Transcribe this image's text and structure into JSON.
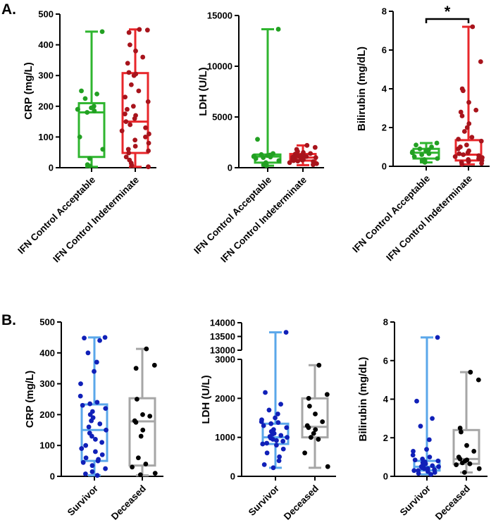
{
  "panel_labels": [
    "A.",
    "B."
  ],
  "chart_data": [
    {
      "id": "a1",
      "type": "box",
      "title": "",
      "ylabel": "CRP (mg/L)",
      "xlabel": "",
      "ylim": [
        0,
        500
      ],
      "yticks": [
        0,
        100,
        200,
        300,
        400,
        500
      ],
      "categories": [
        "IFN Control Acceptable",
        "IFN Control Indeterminate"
      ],
      "series": [
        {
          "name": "IFN Control Acceptable",
          "color": "#2fb52f",
          "dot_color": "#22a022",
          "min": 3,
          "q1": 35,
          "median": 180,
          "q3": 210,
          "max": 443,
          "points": [
            443,
            250,
            240,
            225,
            200,
            195,
            190,
            190,
            185,
            180,
            100,
            60,
            30,
            10,
            5
          ]
        },
        {
          "name": "IFN Control Indeterminate",
          "color": "#e8262a",
          "dot_color": "#a8141c",
          "min": 3,
          "q1": 48,
          "median": 150,
          "q3": 308,
          "max": 450,
          "points": [
            450,
            448,
            440,
            400,
            380,
            360,
            340,
            310,
            305,
            300,
            270,
            250,
            230,
            215,
            200,
            190,
            175,
            170,
            160,
            150,
            140,
            130,
            120,
            110,
            100,
            90,
            80,
            70,
            60,
            55,
            48,
            35,
            25,
            15,
            8,
            3
          ]
        }
      ]
    },
    {
      "id": "a2",
      "type": "box",
      "title": "",
      "ylabel": "LDH (U/L)",
      "xlabel": "",
      "ylim": [
        0,
        15000
      ],
      "yticks": [
        0,
        5000,
        10000,
        15000
      ],
      "categories": [
        "IFN Control Acceptable",
        "IFN Control Indeterminate"
      ],
      "series": [
        {
          "name": "IFN Control Acceptable",
          "color": "#2fb52f",
          "dot_color": "#22a022",
          "min": 200,
          "q1": 500,
          "median": 1100,
          "q3": 1300,
          "max": 13650,
          "points": [
            13650,
            2800,
            1400,
            1300,
            1250,
            1200,
            1150,
            1100,
            1050,
            1000,
            900,
            700,
            500,
            300,
            200
          ]
        },
        {
          "name": "IFN Control Indeterminate",
          "color": "#e8262a",
          "dot_color": "#a8141c",
          "min": 250,
          "q1": 700,
          "median": 1000,
          "q3": 1350,
          "max": 2200,
          "points": [
            2200,
            2000,
            1800,
            1600,
            1500,
            1400,
            1350,
            1300,
            1250,
            1200,
            1150,
            1100,
            1050,
            1000,
            950,
            900,
            850,
            800,
            750,
            700,
            650,
            600,
            500,
            400,
            300
          ]
        }
      ]
    },
    {
      "id": "a3",
      "type": "box",
      "title": "",
      "ylabel": "Bilirubin (mg/dL)",
      "xlabel": "",
      "ylim": [
        0,
        8
      ],
      "yticks": [
        0,
        2,
        4,
        6,
        8
      ],
      "categories": [
        "IFN Control Acceptable",
        "IFN Control Indeterminate"
      ],
      "annotation": {
        "text": "*",
        "between": [
          0,
          1
        ],
        "y": 7.6
      },
      "series": [
        {
          "name": "IFN Control Acceptable",
          "color": "#2fb52f",
          "dot_color": "#22a022",
          "min": 0.2,
          "q1": 0.4,
          "median": 0.7,
          "q3": 0.9,
          "max": 1.2,
          "points": [
            1.2,
            1.1,
            1.0,
            0.9,
            0.85,
            0.8,
            0.75,
            0.7,
            0.65,
            0.6,
            0.5,
            0.4,
            0.35,
            0.3,
            0.2
          ]
        },
        {
          "name": "IFN Control Indeterminate",
          "color": "#e8262a",
          "dot_color": "#a8141c",
          "min": 0.1,
          "q1": 0.3,
          "median": 0.6,
          "q3": 1.35,
          "max": 7.2,
          "points": [
            7.2,
            5.4,
            4.0,
            3.9,
            3.3,
            2.9,
            2.8,
            2.6,
            2.2,
            2.0,
            1.8,
            1.5,
            1.4,
            1.3,
            1.1,
            1.0,
            0.9,
            0.8,
            0.7,
            0.65,
            0.6,
            0.55,
            0.5,
            0.45,
            0.4,
            0.35,
            0.3,
            0.25,
            0.2,
            0.15,
            0.1
          ]
        }
      ]
    },
    {
      "id": "b1",
      "type": "box",
      "title": "",
      "ylabel": "CRP (mg/L)",
      "xlabel": "",
      "ylim": [
        0,
        500
      ],
      "yticks": [
        0,
        100,
        200,
        300,
        400,
        500
      ],
      "categories": [
        "Survivor",
        "Deceased"
      ],
      "series": [
        {
          "name": "Survivor",
          "color": "#5aa7ea",
          "dot_color": "#1020b8",
          "min": 3,
          "q1": 50,
          "median": 150,
          "q3": 233,
          "max": 450,
          "points": [
            450,
            448,
            440,
            400,
            370,
            340,
            300,
            260,
            240,
            235,
            230,
            220,
            210,
            200,
            190,
            180,
            170,
            160,
            150,
            140,
            130,
            120,
            110,
            100,
            90,
            80,
            70,
            60,
            55,
            50,
            45,
            35,
            25,
            15,
            8,
            3
          ]
        },
        {
          "name": "Deceased",
          "color": "#a6a6a6",
          "dot_color": "#000000",
          "min": 3,
          "q1": 35,
          "median": 178,
          "q3": 253,
          "max": 413,
          "points": [
            413,
            360,
            350,
            250,
            200,
            195,
            180,
            175,
            150,
            130,
            60,
            40,
            30,
            10,
            5
          ]
        }
      ]
    },
    {
      "id": "b2",
      "type": "box",
      "broken_axis": true,
      "title": "",
      "ylabel": "LDH (U/L)",
      "xlabel": "",
      "ylim": [
        0,
        3000
      ],
      "ylim_upper": [
        13000,
        14000
      ],
      "yticks": [
        0,
        1000,
        2000,
        3000
      ],
      "yticks_upper": [
        13000,
        13500,
        14000
      ],
      "categories": [
        "Survivor",
        "Deceased"
      ],
      "series": [
        {
          "name": "Survivor",
          "color": "#5aa7ea",
          "dot_color": "#1020b8",
          "min": 220,
          "q1": 830,
          "median": 1000,
          "q3": 1350,
          "max": 13650,
          "points": [
            13650,
            2150,
            1850,
            1700,
            1600,
            1500,
            1450,
            1400,
            1380,
            1350,
            1300,
            1250,
            1200,
            1150,
            1100,
            1080,
            1050,
            1020,
            1000,
            980,
            950,
            920,
            900,
            850,
            830,
            800,
            700,
            600,
            500,
            400,
            300,
            220
          ]
        },
        {
          "name": "Deceased",
          "color": "#a6a6a6",
          "dot_color": "#000000",
          "min": 220,
          "q1": 1000,
          "median": 1270,
          "q3": 2000,
          "max": 2850,
          "points": [
            2850,
            2100,
            2000,
            1800,
            1600,
            1400,
            1300,
            1250,
            1200,
            1100,
            1000,
            950,
            600,
            250
          ]
        }
      ]
    },
    {
      "id": "b3",
      "type": "box",
      "title": "",
      "ylabel": "Bilirubin (mg/dL)",
      "xlabel": "",
      "ylim": [
        0,
        8
      ],
      "yticks": [
        0,
        2,
        4,
        6,
        8
      ],
      "categories": [
        "Survivor",
        "Deceased"
      ],
      "series": [
        {
          "name": "Survivor",
          "color": "#5aa7ea",
          "dot_color": "#1020b8",
          "min": 0.1,
          "q1": 0.3,
          "median": 0.5,
          "q3": 0.8,
          "max": 7.2,
          "points": [
            7.2,
            3.9,
            3.0,
            2.6,
            1.9,
            1.4,
            1.3,
            1.1,
            1.0,
            0.9,
            0.85,
            0.8,
            0.75,
            0.7,
            0.65,
            0.6,
            0.55,
            0.5,
            0.5,
            0.45,
            0.4,
            0.4,
            0.35,
            0.3,
            0.3,
            0.25,
            0.2,
            0.15,
            0.1
          ]
        },
        {
          "name": "Deceased",
          "color": "#a6a6a6",
          "dot_color": "#000000",
          "min": 0.2,
          "q1": 0.65,
          "median": 0.9,
          "q3": 2.4,
          "max": 5.4,
          "points": [
            5.4,
            5.0,
            2.5,
            2.3,
            1.6,
            1.3,
            1.0,
            0.9,
            0.85,
            0.8,
            0.7,
            0.65,
            0.6,
            0.4,
            0.2
          ]
        }
      ]
    }
  ]
}
